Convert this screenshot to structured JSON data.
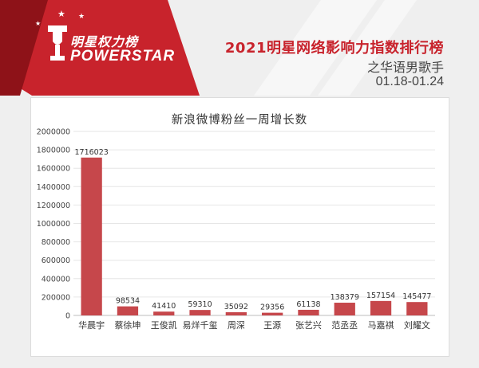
{
  "logo": {
    "name_cn": "明星权力榜",
    "name_en": "POWERSTAR"
  },
  "header": {
    "title": "2021明星网络影响力指数排行榜",
    "subtitle": "之华语男歌手",
    "date_range": "01.18-01.24"
  },
  "colors": {
    "brand_red": "#c8232c",
    "bar_fill": "#c6474b"
  },
  "chart_data": {
    "type": "bar",
    "title": "新浪微博粉丝一周增长数",
    "categories": [
      "华晨宇",
      "蔡徐坤",
      "王俊凯",
      "易烊千玺",
      "周深",
      "王源",
      "张艺兴",
      "范丞丞",
      "马嘉祺",
      "刘耀文"
    ],
    "values": [
      1716023,
      98534,
      41410,
      59310,
      35092,
      29356,
      61138,
      138379,
      157154,
      145477
    ],
    "ylim": [
      0,
      2000000
    ],
    "yticks": [
      "0",
      "200000",
      "400000",
      "600000",
      "800000",
      "1000000",
      "1200000",
      "1400000",
      "1600000",
      "1800000",
      "2000000"
    ],
    "grid": true,
    "xlabel": "",
    "ylabel": ""
  }
}
